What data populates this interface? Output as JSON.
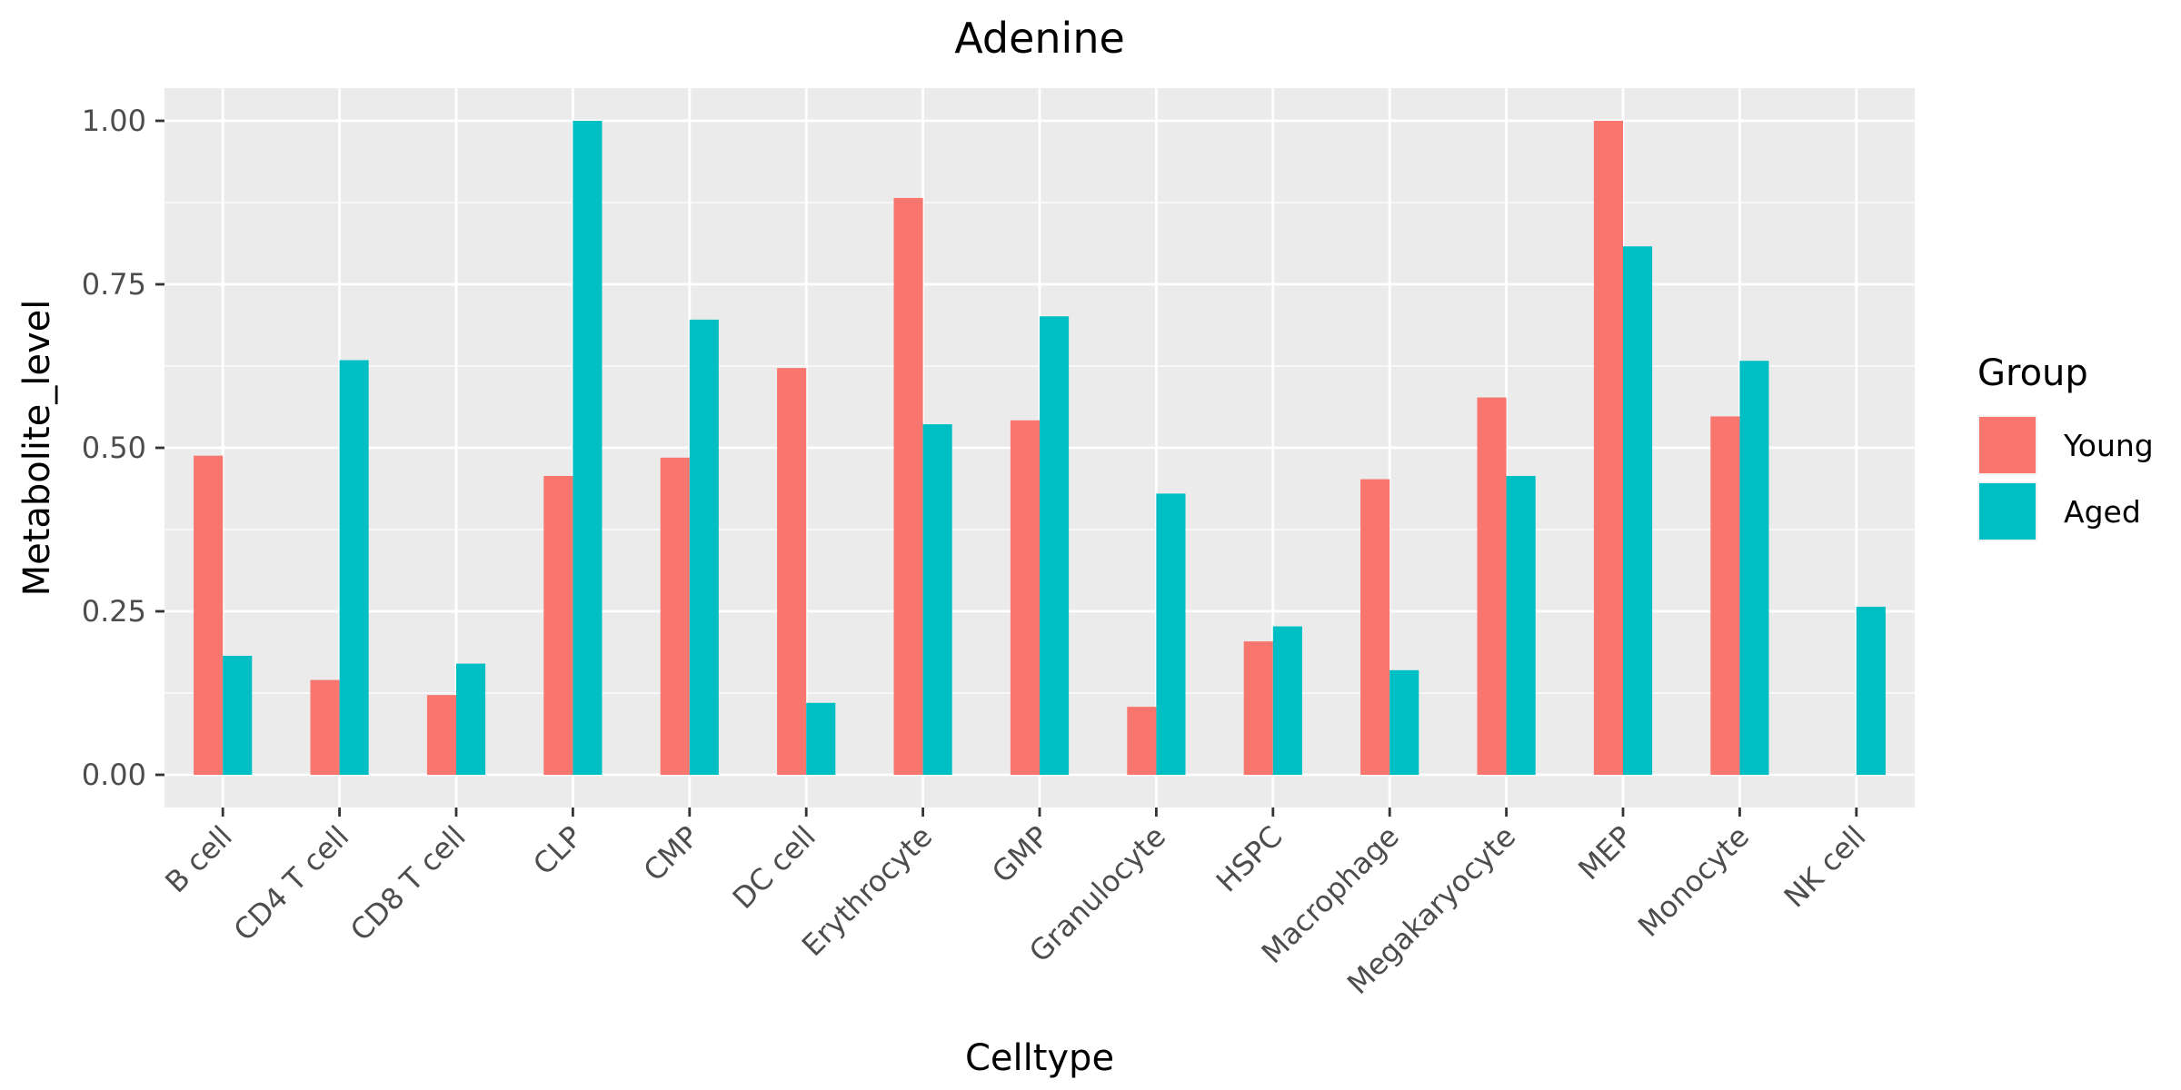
{
  "chart_data": {
    "type": "bar",
    "title": "Adenine",
    "xlabel": "Celltype",
    "ylabel": "Metabolite_level",
    "ylim": [
      -0.05,
      1.05
    ],
    "yticks": [
      0.0,
      0.25,
      0.5,
      0.75,
      1.0
    ],
    "ytick_labels": [
      "0.00",
      "0.25",
      "0.50",
      "0.75",
      "1.00"
    ],
    "grid": true,
    "legend": {
      "title": "Group",
      "placement": "right"
    },
    "categories": [
      "B cell",
      "CD4 T cell",
      "CD8 T cell",
      "CLP",
      "CMP",
      "DC cell",
      "Erythrocyte",
      "GMP",
      "Granulocyte",
      "HSPC",
      "Macrophage",
      "Megakaryocyte",
      "MEP",
      "Monocyte",
      "NK cell"
    ],
    "series": [
      {
        "name": "Young",
        "color": "#F8766D",
        "values": [
          0.488,
          0.145,
          0.122,
          0.457,
          0.485,
          0.622,
          0.882,
          0.542,
          0.104,
          0.204,
          0.452,
          0.577,
          1.0,
          0.548,
          null
        ]
      },
      {
        "name": "Aged",
        "color": "#00BFC4",
        "values": [
          0.182,
          0.634,
          0.17,
          1.0,
          0.696,
          0.11,
          0.536,
          0.701,
          0.43,
          0.227,
          0.16,
          0.457,
          0.808,
          0.633,
          0.257
        ]
      }
    ]
  }
}
